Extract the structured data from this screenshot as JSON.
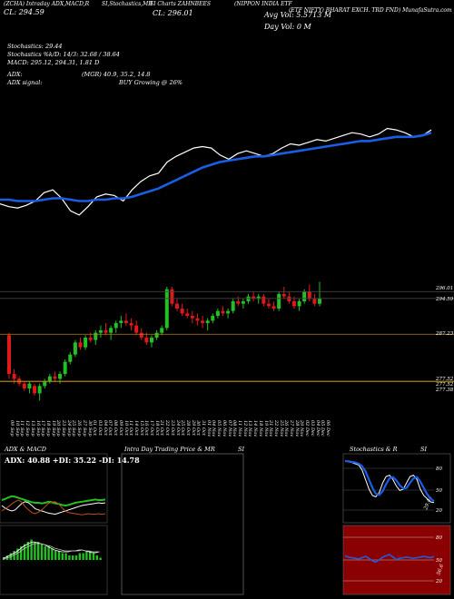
{
  "header": {
    "seg1": "(ZCHA) Intraday ADX,MACD,R",
    "seg2": "SI,Stochastics,MR",
    "seg3": "SI Charts ZAHNBEES",
    "seg4": "(NIPPON INDIA ETF",
    "seg5": "(ETF NIFTY) BHARAT EXCH. TRD FND) MunafaSutra.com"
  },
  "info": {
    "close_label": "CL: 294.59",
    "open_label": "(L, 294.59)",
    "close2": "CL: 296.01",
    "avg_vol": "Avg Vol: 5.5713 M",
    "day_vol": "Day Vol: 0   M",
    "stoch": "Stochastics: 29.44",
    "stoch_line": "Stochastics %k/D: 14/3: 32.68 / 38.64",
    "macd": "MACD: 295.12,  294.31,  1.81 D",
    "adx": "ADX:",
    "adx_line": "(MGR) 40.9,  35.2,  14.8",
    "adx_signal": "ADX  signal:",
    "buy": "BUY Growing @ 26%"
  },
  "colors": {
    "up": "#22c022",
    "down": "#e01818",
    "ema": "#1b5ee6",
    "price_line": "#ffffff",
    "level_line": "#b8860b",
    "stoch_bg": "#000000",
    "rsi_bg": "#8b0000"
  },
  "chart_data": [
    {
      "type": "line",
      "name": "price-overview",
      "series": [
        {
          "name": "price",
          "values": [
            50,
            48,
            47,
            49,
            52,
            58,
            60,
            54,
            45,
            42,
            48,
            55,
            57,
            56,
            52,
            60,
            66,
            70,
            72,
            80,
            84,
            87,
            90,
            91,
            90,
            85,
            82,
            86,
            88,
            86,
            84,
            86,
            90,
            93,
            92,
            94,
            96,
            95,
            97,
            99,
            101,
            100,
            98,
            100,
            104,
            103,
            101,
            98,
            99,
            103
          ]
        },
        {
          "name": "ema",
          "values": [
            53,
            53,
            52,
            52,
            52,
            53,
            54,
            54,
            53,
            52,
            52,
            53,
            53,
            54,
            54,
            55,
            57,
            59,
            61,
            64,
            67,
            70,
            73,
            76,
            78,
            80,
            81,
            82,
            83,
            84,
            84,
            85,
            86,
            87,
            88,
            89,
            90,
            91,
            92,
            93,
            94,
            95,
            95,
            96,
            97,
            98,
            98,
            98,
            99,
            101
          ]
        }
      ]
    },
    {
      "type": "candlestick",
      "name": "daily-candles",
      "categories": [
        "09 Sep",
        "10 Sep",
        "11 Sep",
        "12 Sep",
        "13 Sep",
        "16 Sep",
        "17 Sep",
        "18 Sep",
        "19 Sep",
        "20 Sep",
        "23 Sep",
        "24 Sep",
        "25 Sep",
        "26 Sep",
        "27 Sep",
        "30 Sep",
        "01 Oct",
        "03 Oct",
        "04 Oct",
        "07 Oct",
        "08 Oct",
        "09 Oct",
        "10 Oct",
        "11 Oct",
        "14 Oct",
        "15 Oct",
        "16 Oct",
        "17 Oct",
        "18 Oct",
        "21 Oct",
        "22 Oct",
        "23 Oct",
        "24 Oct",
        "25 Oct",
        "28 Oct",
        "29 Oct",
        "30 Oct",
        "31 Oct",
        "01 Nov",
        "04 Nov",
        "05 Nov",
        "06 Nov",
        "07 Nov",
        "08 Nov",
        "11 Nov",
        "12 Nov",
        "13 Nov",
        "14 Nov",
        "18 Nov",
        "19 Nov",
        "21 Nov",
        "22 Nov",
        "25 Nov",
        "26 Nov",
        "27 Nov",
        "28 Nov",
        "29 Nov",
        "02 Dec",
        "03 Dec",
        "04 Dec",
        "05 Dec",
        "06 Dec"
      ],
      "ohlc": [
        [
          287.0,
          287.5,
          278.0,
          279.0
        ],
        [
          279.0,
          280.0,
          277.0,
          278.0
        ],
        [
          278.0,
          278.5,
          276.5,
          277.0
        ],
        [
          277.0,
          277.5,
          275.5,
          276.0
        ],
        [
          276.0,
          277.5,
          275.0,
          277.0
        ],
        [
          276.5,
          277.0,
          274.5,
          275.0
        ],
        [
          275.0,
          277.0,
          273.5,
          276.5
        ],
        [
          276.5,
          278.0,
          276.0,
          277.5
        ],
        [
          277.5,
          279.0,
          277.0,
          278.5
        ],
        [
          278.5,
          279.5,
          277.5,
          278.0
        ],
        [
          278.0,
          279.5,
          277.0,
          279.0
        ],
        [
          279.0,
          282.0,
          278.5,
          281.5
        ],
        [
          281.5,
          283.5,
          281.0,
          283.0
        ],
        [
          283.0,
          286.0,
          282.5,
          285.5
        ],
        [
          285.5,
          286.5,
          284.0,
          284.5
        ],
        [
          284.5,
          287.0,
          284.0,
          286.5
        ],
        [
          286.5,
          287.5,
          285.5,
          286.0
        ],
        [
          286.0,
          288.0,
          285.0,
          287.5
        ],
        [
          287.5,
          289.0,
          286.5,
          288.0
        ],
        [
          288.0,
          289.5,
          287.0,
          287.5
        ],
        [
          287.5,
          289.0,
          286.0,
          288.5
        ],
        [
          288.5,
          290.0,
          287.5,
          289.5
        ],
        [
          289.5,
          291.0,
          288.5,
          290.0
        ],
        [
          290.0,
          291.5,
          289.0,
          289.5
        ],
        [
          289.5,
          290.5,
          288.0,
          289.0
        ],
        [
          289.0,
          290.0,
          287.0,
          287.5
        ],
        [
          287.5,
          288.5,
          286.0,
          286.5
        ],
        [
          286.5,
          287.5,
          285.0,
          285.5
        ],
        [
          285.5,
          287.0,
          284.5,
          286.5
        ],
        [
          286.5,
          288.0,
          286.0,
          287.5
        ],
        [
          287.5,
          289.0,
          287.0,
          288.5
        ],
        [
          288.5,
          297.0,
          288.0,
          296.5
        ],
        [
          296.5,
          297.0,
          293.0,
          293.5
        ],
        [
          293.5,
          294.5,
          292.0,
          292.5
        ],
        [
          292.5,
          293.5,
          291.0,
          291.5
        ],
        [
          291.5,
          292.5,
          290.5,
          291.0
        ],
        [
          291.0,
          292.0,
          289.5,
          290.5
        ],
        [
          290.5,
          291.5,
          289.0,
          290.0
        ],
        [
          290.0,
          291.0,
          288.5,
          289.5
        ],
        [
          289.5,
          290.5,
          288.0,
          290.0
        ],
        [
          290.0,
          291.5,
          289.5,
          291.0
        ],
        [
          291.0,
          292.5,
          290.5,
          292.0
        ],
        [
          292.0,
          293.0,
          291.0,
          291.5
        ],
        [
          291.5,
          292.5,
          290.5,
          292.0
        ],
        [
          292.0,
          294.5,
          291.5,
          294.0
        ],
        [
          294.0,
          295.0,
          293.0,
          293.5
        ],
        [
          293.5,
          294.5,
          292.5,
          294.0
        ],
        [
          294.0,
          295.5,
          293.5,
          295.0
        ],
        [
          295.0,
          296.0,
          294.0,
          294.5
        ],
        [
          294.5,
          295.5,
          293.5,
          295.0
        ],
        [
          295.0,
          295.5,
          293.0,
          293.5
        ],
        [
          293.5,
          294.5,
          292.5,
          293.0
        ],
        [
          293.0,
          294.0,
          292.0,
          292.5
        ],
        [
          292.5,
          296.0,
          292.0,
          295.5
        ],
        [
          295.5,
          297.0,
          294.5,
          295.0
        ],
        [
          295.0,
          296.0,
          293.5,
          294.0
        ],
        [
          294.0,
          295.0,
          292.5,
          293.0
        ],
        [
          293.0,
          294.5,
          292.0,
          294.0
        ],
        [
          294.0,
          296.5,
          293.5,
          296.0
        ],
        [
          296.0,
          297.5,
          294.0,
          294.5
        ],
        [
          294.5,
          295.5,
          293.0,
          293.5
        ],
        [
          293.5,
          298.0,
          293.0,
          294.6
        ]
      ],
      "price_labels": [
        "296.01",
        "294.59",
        "287.23",
        "277.52",
        "277.52",
        "277.38"
      ],
      "levels": [
        296.0,
        294.6,
        287.2,
        277.5,
        277.4
      ]
    },
    {
      "type": "line",
      "name": "adx-macd",
      "title": "ADX  & MACD",
      "subtitle": "ADX: 40.88  +DI: 35.22  -DI: 14.78",
      "series": [
        {
          "name": "adx",
          "values": [
            40,
            42,
            45,
            47,
            46,
            44,
            42,
            40,
            38,
            36,
            35,
            35,
            34,
            35,
            37,
            36,
            34,
            33,
            31,
            30,
            31,
            33,
            35,
            36,
            37,
            38,
            39,
            40,
            41,
            40,
            40,
            41
          ]
        },
        {
          "name": "+DI",
          "values": [
            30,
            25,
            22,
            20,
            22,
            28,
            34,
            37,
            35,
            30,
            24,
            22,
            20,
            18,
            16,
            15,
            14,
            16,
            18,
            20,
            22,
            24,
            26,
            28,
            30,
            31,
            32,
            33,
            34,
            35,
            34,
            35
          ]
        },
        {
          "name": "-DI",
          "values": [
            20,
            24,
            28,
            33,
            37,
            40,
            36,
            28,
            22,
            17,
            15,
            18,
            22,
            28,
            34,
            36,
            37,
            33,
            26,
            20,
            17,
            16,
            15,
            14,
            13,
            14,
            15,
            14,
            14,
            15,
            14,
            15
          ]
        }
      ],
      "macd_hist": [
        1,
        2,
        3,
        4,
        5,
        6,
        7,
        8,
        9,
        8,
        8,
        7,
        6,
        6,
        5,
        4,
        4,
        3,
        3,
        2,
        2,
        2,
        3,
        3,
        4,
        4,
        3,
        2,
        1
      ]
    },
    {
      "type": "line",
      "name": "intraday",
      "title": "Intra Day Trading Price  & MR",
      "title_suffix": "SI"
    },
    {
      "type": "line",
      "name": "stochastics-rsi",
      "title": "Stochastics & R",
      "title_suffix": "SI",
      "stoch_ticks": [
        "80",
        "50",
        "20"
      ],
      "stoch_value_label": "29.44",
      "rsi_ticks": [
        "80",
        "50",
        "20"
      ],
      "rsi_value_label": "56.6",
      "series": [
        {
          "name": "%K",
          "values": [
            95,
            93,
            92,
            90,
            88,
            80,
            65,
            50,
            40,
            38,
            45,
            60,
            70,
            72,
            65,
            55,
            48,
            50,
            60,
            70,
            72,
            65,
            50,
            40,
            35,
            30,
            29
          ]
        },
        {
          "name": "%D",
          "values": [
            94,
            94,
            93,
            92,
            90,
            86,
            78,
            65,
            52,
            43,
            41,
            47,
            58,
            67,
            69,
            64,
            56,
            51,
            52,
            60,
            67,
            69,
            62,
            52,
            42,
            35,
            31
          ]
        },
        {
          "name": "rsi",
          "values": [
            58,
            56,
            55,
            54,
            53,
            55,
            57,
            54,
            50,
            48,
            52,
            56,
            58,
            60,
            56,
            52,
            54,
            55,
            56,
            55,
            54,
            55,
            56,
            57,
            56,
            55,
            57
          ]
        }
      ]
    }
  ]
}
